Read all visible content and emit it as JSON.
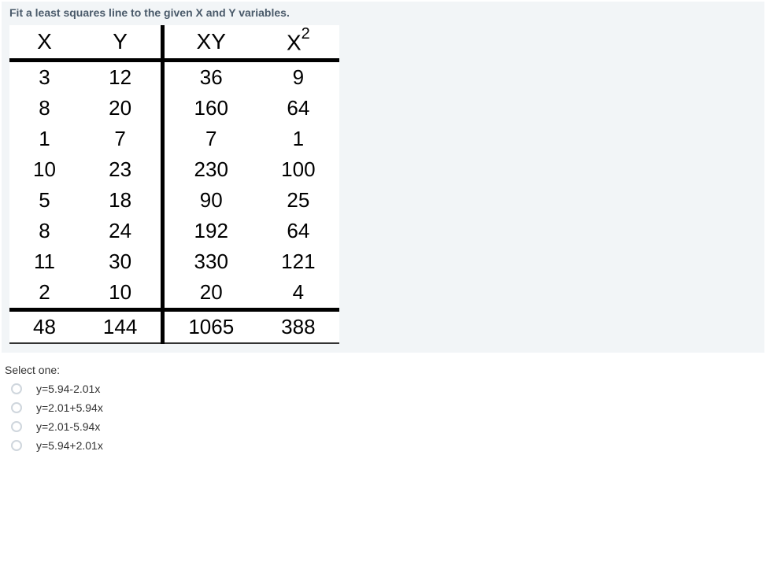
{
  "question": "Fit a least squares line to the given X and Y variables.",
  "table": {
    "headers": {
      "c1": "X",
      "c2": "Y",
      "c3": "XY",
      "c4_base": "X",
      "c4_exp": "2"
    },
    "rows": [
      {
        "c1": "3",
        "c2": "12",
        "c3": "36",
        "c4": "9"
      },
      {
        "c1": "8",
        "c2": "20",
        "c3": "160",
        "c4": "64"
      },
      {
        "c1": "1",
        "c2": "7",
        "c3": "7",
        "c4": "1"
      },
      {
        "c1": "10",
        "c2": "23",
        "c3": "230",
        "c4": "100"
      },
      {
        "c1": "5",
        "c2": "18",
        "c3": "90",
        "c4": "25"
      },
      {
        "c1": "8",
        "c2": "24",
        "c3": "192",
        "c4": "64"
      },
      {
        "c1": "11",
        "c2": "30",
        "c3": "330",
        "c4": "121"
      },
      {
        "c1": "2",
        "c2": "10",
        "c3": "20",
        "c4": "4"
      }
    ],
    "sums": {
      "c1": "48",
      "c2": "144",
      "c3": "1065",
      "c4": "388"
    }
  },
  "select_label": "Select one:",
  "options": [
    {
      "text": "y=5.94-2.01x"
    },
    {
      "text": "y=2.01+5.94x"
    },
    {
      "text": "y=2.01-5.94x"
    },
    {
      "text": "y=5.94+2.01x"
    }
  ],
  "colors": {
    "page_bg": "#ffffff",
    "panel_bg": "#f2f5f7",
    "question_color": "#4a5a6a",
    "table_border": "#000000",
    "radio_border": "#cfd6dd"
  }
}
